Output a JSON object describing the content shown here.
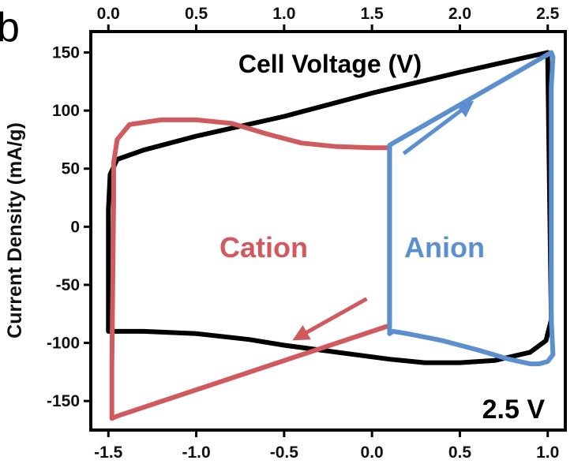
{
  "panel_label": "b",
  "chart_data": {
    "type": "line",
    "title": "Cell Voltage (V)",
    "ylabel": "Current Density (mA/g)",
    "xlabel": "",
    "corner_label": "2.5 V",
    "x_bottom": {
      "lim": [
        -1.6,
        1.1
      ],
      "ticks": [
        -1.5,
        -1.0,
        -0.5,
        0.0,
        0.5,
        1.0
      ],
      "tick_labels": [
        "-1.5",
        "-1.0",
        "-0.5",
        "0.0",
        "0.5",
        "1.0"
      ]
    },
    "x_top": {
      "lim": [
        -0.1,
        2.6
      ],
      "ticks": [
        0.0,
        0.5,
        1.0,
        1.5,
        2.0,
        2.5
      ],
      "tick_labels": [
        "0.0",
        "0.5",
        "1.0",
        "1.5",
        "2.0",
        "2.5"
      ]
    },
    "y": {
      "lim": [
        -175,
        168
      ],
      "ticks": [
        150,
        100,
        50,
        0,
        -50,
        -100,
        -150
      ],
      "tick_labels": [
        "150",
        "100",
        "50",
        "0",
        "-50",
        "-100",
        "-150"
      ]
    },
    "series": [
      {
        "name": "Cell Voltage",
        "axis": "top",
        "color": "#000000",
        "points": [
          [
            0.0,
            -90
          ],
          [
            0.0,
            15
          ],
          [
            0.01,
            45
          ],
          [
            0.05,
            58
          ],
          [
            0.2,
            66
          ],
          [
            0.5,
            78
          ],
          [
            1.0,
            95
          ],
          [
            1.5,
            115
          ],
          [
            2.0,
            133
          ],
          [
            2.5,
            150
          ],
          [
            2.5,
            145
          ],
          [
            2.52,
            -80
          ],
          [
            2.49,
            -98
          ],
          [
            2.4,
            -108
          ],
          [
            2.2,
            -115
          ],
          [
            2.0,
            -117
          ],
          [
            1.8,
            -117
          ],
          [
            1.6,
            -114
          ],
          [
            1.4,
            -110
          ],
          [
            1.2,
            -106
          ],
          [
            1.0,
            -102
          ],
          [
            0.8,
            -97
          ],
          [
            0.5,
            -92
          ],
          [
            0.2,
            -90
          ],
          [
            0.0,
            -90
          ]
        ]
      },
      {
        "name": "Cation",
        "axis": "bottom",
        "color": "#d05a5e",
        "points": [
          [
            0.1,
            -70
          ],
          [
            0.1,
            68
          ],
          [
            0.0,
            68
          ],
          [
            -0.2,
            69
          ],
          [
            -0.4,
            72
          ],
          [
            -0.6,
            80
          ],
          [
            -0.8,
            89
          ],
          [
            -1.0,
            92
          ],
          [
            -1.2,
            92
          ],
          [
            -1.38,
            88
          ],
          [
            -1.45,
            75
          ],
          [
            -1.47,
            55
          ],
          [
            -1.47,
            20
          ],
          [
            -1.48,
            -120
          ],
          [
            -1.48,
            -165
          ],
          [
            -1.45,
            -163
          ],
          [
            0.1,
            -85
          ],
          [
            0.1,
            -70
          ]
        ]
      },
      {
        "name": "Anion",
        "axis": "bottom",
        "color": "#5b8fcf",
        "points": [
          [
            0.1,
            -92
          ],
          [
            0.1,
            70
          ],
          [
            0.12,
            72
          ],
          [
            1.02,
            150
          ],
          [
            1.03,
            146
          ],
          [
            1.02,
            120
          ],
          [
            1.02,
            -80
          ],
          [
            1.03,
            -110
          ],
          [
            1.0,
            -116
          ],
          [
            0.95,
            -118
          ],
          [
            0.9,
            -118
          ],
          [
            0.78,
            -114
          ],
          [
            0.6,
            -106
          ],
          [
            0.4,
            -98
          ],
          [
            0.2,
            -92
          ],
          [
            0.12,
            -90
          ],
          [
            0.1,
            -92
          ]
        ]
      }
    ],
    "annotations": [
      {
        "text": "Cation",
        "color": "#d05a5e"
      },
      {
        "text": "Anion",
        "color": "#5b8fcf"
      }
    ],
    "arrows": [
      {
        "series": "Anion",
        "color": "#5b8fcf",
        "from": [
          0.18,
          63
        ],
        "to": [
          0.55,
          105
        ]
      },
      {
        "series": "Cation",
        "color": "#d05a5e",
        "from": [
          -0.03,
          -62
        ],
        "to": [
          -0.42,
          -95
        ]
      }
    ],
    "grid": false,
    "legend": "none"
  }
}
